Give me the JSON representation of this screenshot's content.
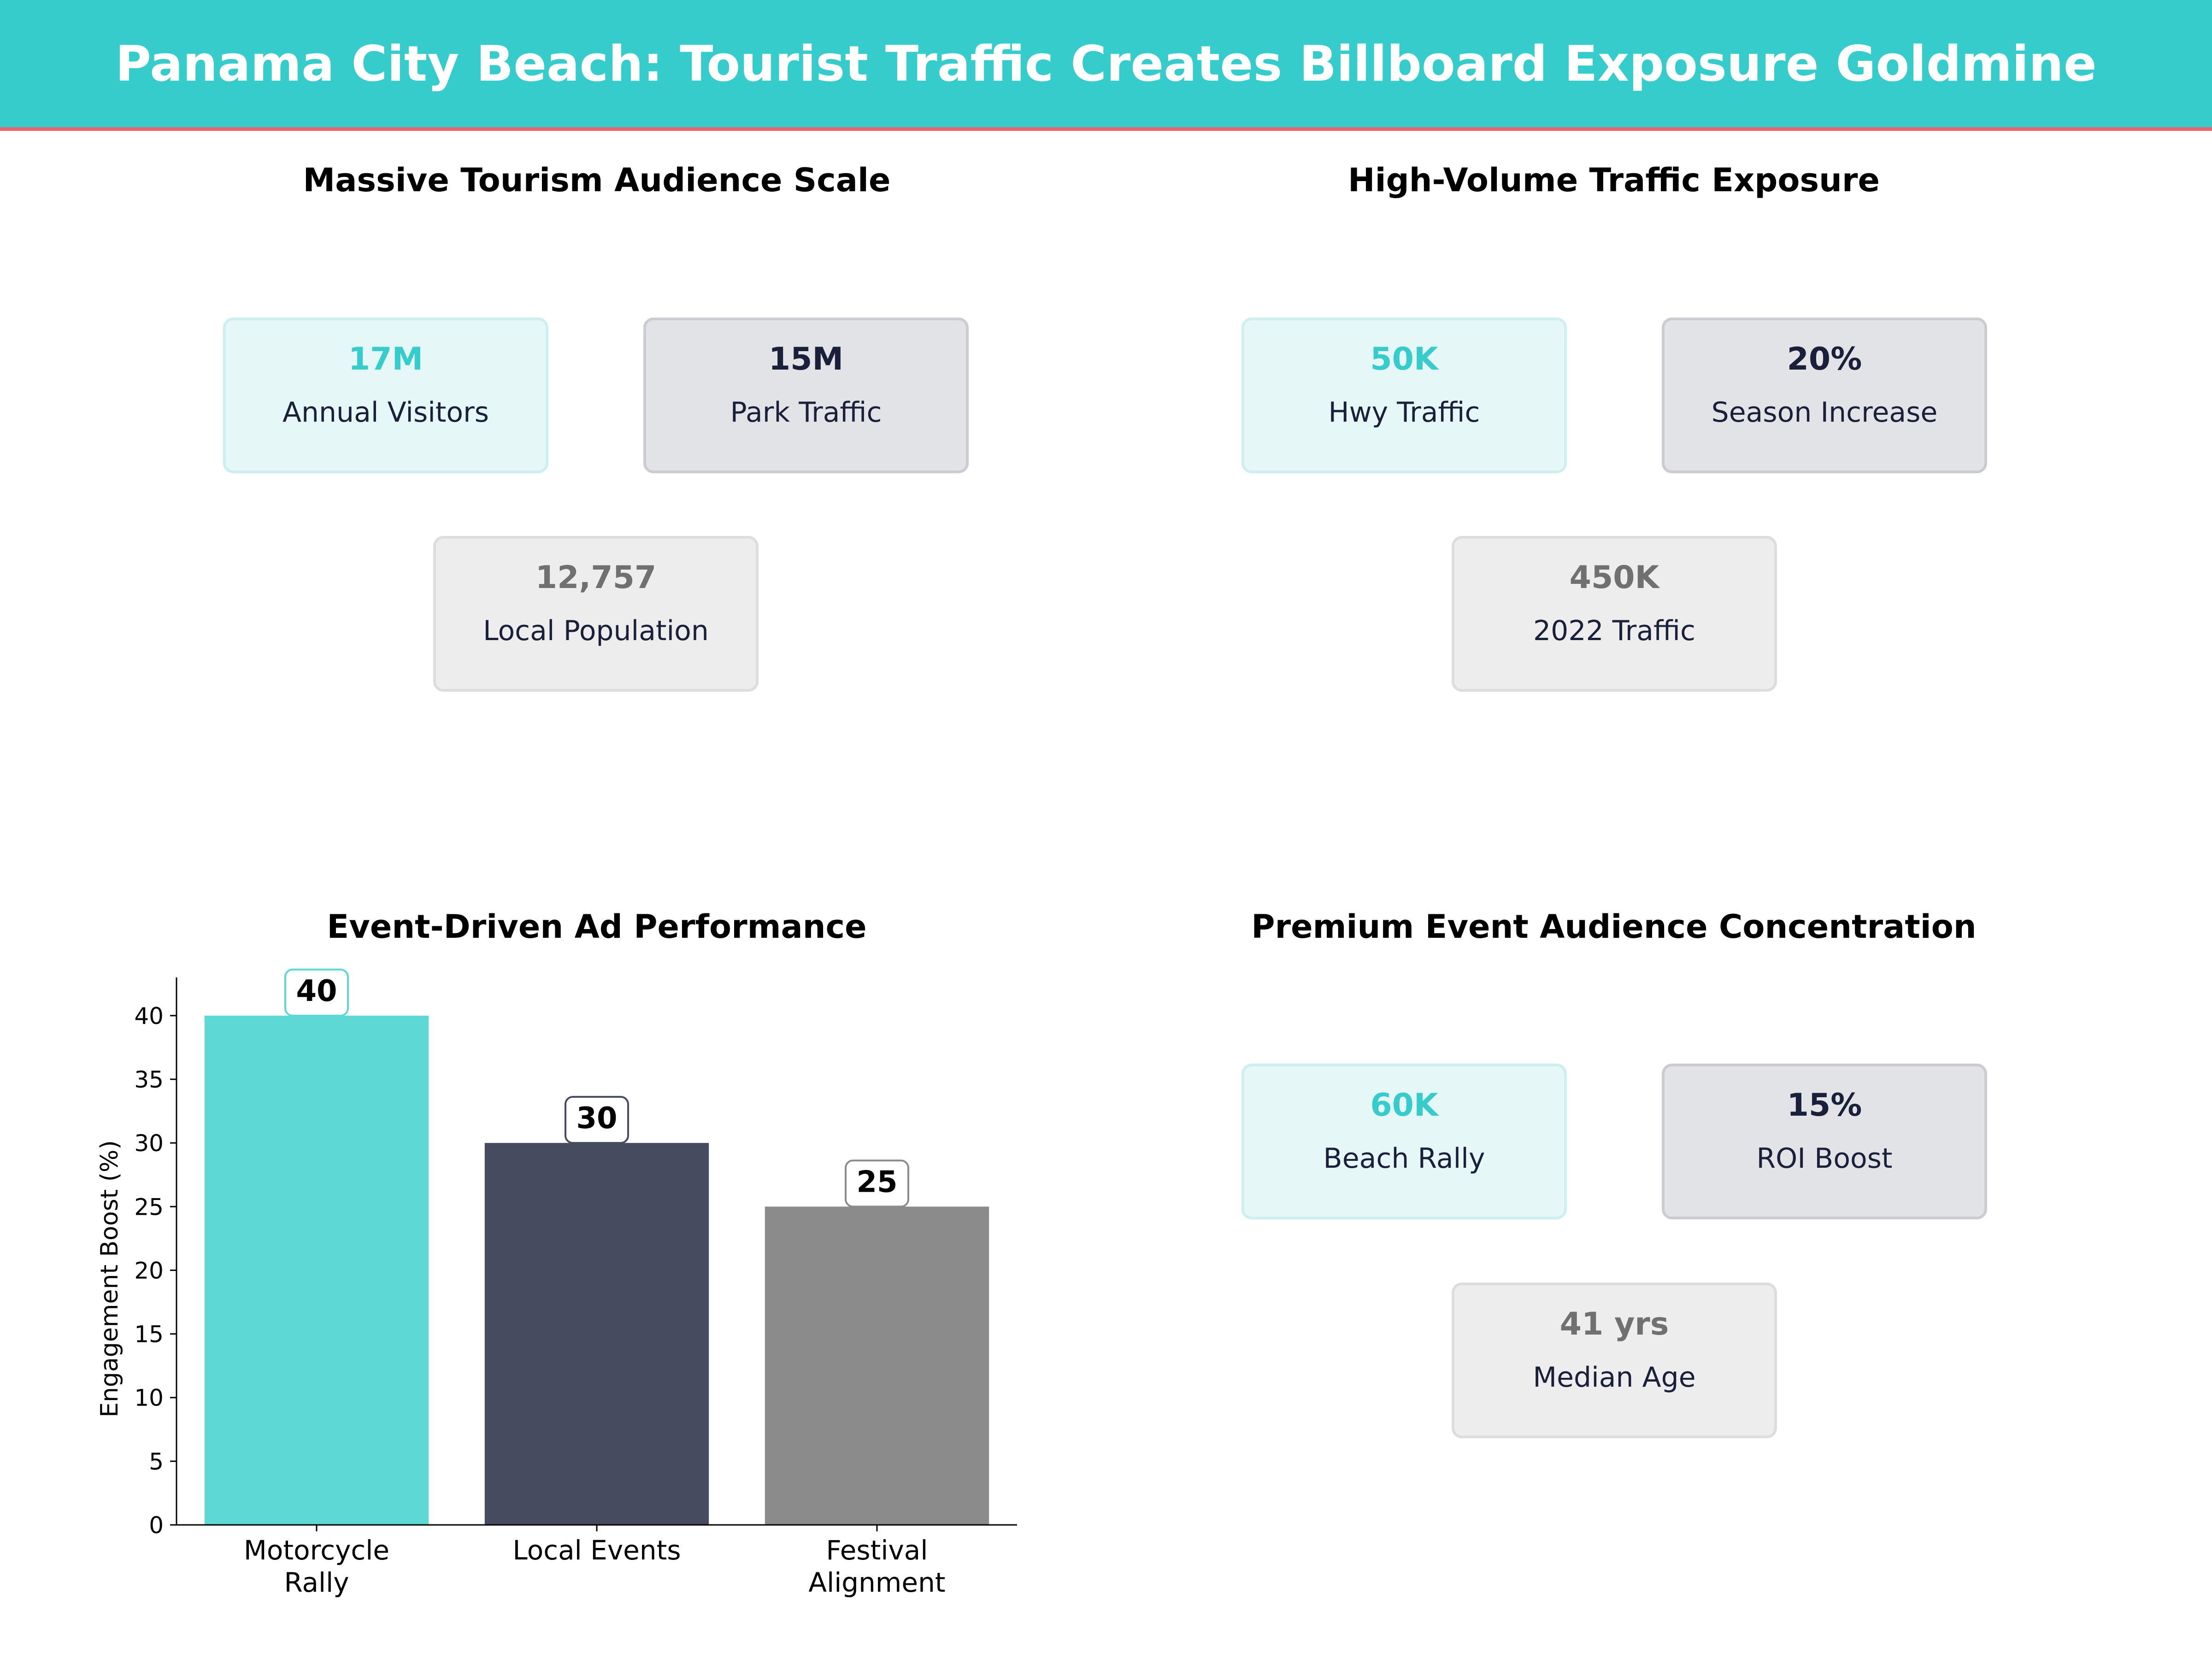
{
  "title": "Panama City Beach: Tourist Traffic Creates Billboard Exposure Goldmine",
  "colors": {
    "header": "#36CCCC",
    "accent_line": "#F06272",
    "teal": "#36CCCC",
    "navy": "#1A1F3A",
    "gray": "#707070"
  },
  "panels": [
    {
      "title": "Massive Tourism Audience Scale",
      "cards": [
        {
          "value": "17M",
          "label": "Annual Visitors"
        },
        {
          "value": "15M",
          "label": "Park Traffic"
        },
        {
          "value": "12,757",
          "label": "Local Population"
        }
      ]
    },
    {
      "title": "High-Volume Traffic Exposure",
      "cards": [
        {
          "value": "50K",
          "label": "Hwy Traffic"
        },
        {
          "value": "20%",
          "label": "Season Increase"
        },
        {
          "value": "450K",
          "label": "2022 Traffic"
        }
      ]
    },
    {
      "title": "Premium Event Audience Concentration",
      "cards": [
        {
          "value": "60K",
          "label": "Beach Rally"
        },
        {
          "value": "15%",
          "label": "ROI Boost"
        },
        {
          "value": "41 yrs",
          "label": "Median Age"
        }
      ]
    }
  ],
  "chart_data": {
    "type": "bar",
    "title": "Event-Driven Ad Performance",
    "categories": [
      "Motorcycle\nRally",
      "Local Events",
      "Festival\nAlignment"
    ],
    "values": [
      40,
      30,
      25
    ],
    "data_labels": [
      "40",
      "30",
      "25"
    ],
    "colors": [
      "#5DD8D5",
      "#464B60",
      "#8B8B8B"
    ],
    "xlabel": "",
    "ylabel": "Engagement Boost (%)",
    "ylim": [
      0,
      43
    ],
    "yticks": [
      0,
      5,
      10,
      15,
      20,
      25,
      30,
      35,
      40
    ],
    "grid": false
  }
}
